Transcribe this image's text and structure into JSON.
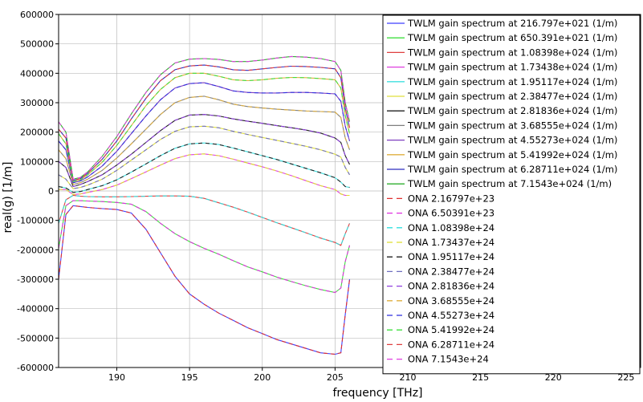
{
  "chart_data": {
    "type": "line",
    "xlabel": "frequency [THz]",
    "ylabel": "real(g) [1/m]",
    "xlim": [
      186,
      226
    ],
    "ylim": [
      -600000,
      600000
    ],
    "x_ticks": [
      "190",
      "195",
      "200",
      "205",
      "210",
      "215",
      "220",
      "225"
    ],
    "y_ticks": [
      "600000",
      "500000",
      "400000",
      "300000",
      "200000",
      "100000",
      "0",
      "-100000",
      "-200000",
      "-300000",
      "-400000",
      "-500000",
      "-600000"
    ],
    "x_tick_values": [
      190,
      195,
      200,
      205,
      210,
      215,
      220,
      225
    ],
    "y_tick_values": [
      600000,
      500000,
      400000,
      300000,
      200000,
      100000,
      0,
      -100000,
      -200000,
      -300000,
      -400000,
      -500000,
      -600000
    ],
    "x": [
      186,
      186.5,
      187,
      187.5,
      188,
      189,
      190,
      191,
      192,
      193,
      194,
      195,
      196,
      197,
      198,
      199,
      200,
      201,
      202,
      203,
      204,
      205,
      205.4,
      205.7,
      206
    ],
    "legend_position": "top-right",
    "series": [
      {
        "name": "TWLM gain spectrum  at 216.797e+021 (1/m)",
        "color": "#3f3fff",
        "dash": false,
        "values": [
          -300000,
          -80000,
          -50000,
          -53000,
          -56000,
          -60000,
          -63000,
          -75000,
          -130000,
          -210000,
          -290000,
          -350000,
          -385000,
          -415000,
          -440000,
          -465000,
          -485000,
          -505000,
          -520000,
          -535000,
          -550000,
          -555000,
          -550000,
          -420000,
          -300000
        ]
      },
      {
        "name": "TWLM gain spectrum  at 650.391e+021 (1/m)",
        "color": "#3fdf3f",
        "dash": false,
        "values": [
          -195000,
          -50000,
          -33000,
          -33000,
          -34000,
          -36000,
          -39000,
          -45000,
          -70000,
          -110000,
          -145000,
          -172000,
          -195000,
          -215000,
          -237000,
          -258000,
          -275000,
          -293000,
          -308000,
          -322000,
          -335000,
          -345000,
          -330000,
          -240000,
          -185000
        ]
      },
      {
        "name": "TWLM gain spectrum  at 1.08398e+024 (1/m)",
        "color": "#df3f3f",
        "dash": false,
        "values": [
          -110000,
          -30000,
          -15000,
          -18000,
          -19000,
          -20000,
          -20000,
          -19000,
          -18000,
          -17000,
          -17000,
          -18000,
          -25000,
          -40000,
          -55000,
          -72000,
          -90000,
          -108000,
          -125000,
          -142000,
          -160000,
          -175000,
          -185000,
          -145000,
          -110000
        ]
      },
      {
        "name": "TWLM gain spectrum  at 1.73438e+024 (1/m)",
        "color": "#df3fdf",
        "dash": false,
        "values": [
          5000,
          5000,
          -12000,
          -10000,
          -5000,
          5000,
          20000,
          42000,
          65000,
          88000,
          110000,
          123000,
          126000,
          120000,
          108000,
          95000,
          82000,
          68000,
          52000,
          35000,
          18000,
          5000,
          -10000,
          -15000,
          -15000
        ]
      },
      {
        "name": "TWLM gain spectrum  at 1.95117e+024 (1/m)",
        "color": "#3fdfdf",
        "dash": false,
        "values": [
          15000,
          10000,
          -5000,
          -2000,
          5000,
          18000,
          38000,
          64000,
          92000,
          120000,
          145000,
          160000,
          163000,
          158000,
          146000,
          133000,
          120000,
          107000,
          92000,
          77000,
          62000,
          45000,
          30000,
          15000,
          12000
        ]
      },
      {
        "name": "TWLM gain spectrum  at 2.38477e+024 (1/m)",
        "color": "#dfdf3f",
        "dash": false,
        "values": [
          55000,
          40000,
          8000,
          12000,
          20000,
          40000,
          70000,
          105000,
          140000,
          175000,
          203000,
          218000,
          220000,
          215000,
          203000,
          192000,
          182000,
          172000,
          162000,
          152000,
          140000,
          125000,
          115000,
          80000,
          55000
        ]
      },
      {
        "name": "TWLM gain spectrum  at 2.81836e+024 (1/m)",
        "color": "#202020",
        "dash": false,
        "values": [
          100000,
          80000,
          15000,
          22000,
          32000,
          55000,
          88000,
          125000,
          165000,
          205000,
          240000,
          258000,
          260000,
          255000,
          245000,
          237000,
          230000,
          222000,
          215000,
          207000,
          197000,
          180000,
          165000,
          120000,
          90000
        ]
      },
      {
        "name": "TWLM gain spectrum  at 3.68555e+024 (1/m)",
        "color": "#7f7f7f",
        "dash": false,
        "values": [
          140000,
          110000,
          22000,
          28000,
          40000,
          70000,
          112000,
          160000,
          210000,
          260000,
          300000,
          318000,
          322000,
          310000,
          295000,
          287000,
          282000,
          278000,
          275000,
          272000,
          270000,
          268000,
          250000,
          180000,
          140000
        ]
      },
      {
        "name": "TWLM gain spectrum  at 4.55273e+024 (1/m)",
        "color": "#7f3fbf",
        "dash": false,
        "values": [
          170000,
          140000,
          28000,
          34000,
          48000,
          85000,
          135000,
          195000,
          255000,
          310000,
          350000,
          365000,
          368000,
          355000,
          340000,
          335000,
          333000,
          333000,
          335000,
          335000,
          333000,
          330000,
          305000,
          220000,
          170000
        ]
      },
      {
        "name": "TWLM gain spectrum  at 5.41992e+024 (1/m)",
        "color": "#dfaf3f",
        "dash": false,
        "values": [
          195000,
          160000,
          32000,
          38000,
          55000,
          98000,
          155000,
          222000,
          290000,
          345000,
          385000,
          400000,
          400000,
          390000,
          378000,
          375000,
          378000,
          383000,
          386000,
          385000,
          382000,
          378000,
          350000,
          255000,
          195000
        ]
      },
      {
        "name": "TWLM gain spectrum  at 6.28711e+024 (1/m)",
        "color": "#2f2fbf",
        "dash": false,
        "values": [
          210000,
          180000,
          36000,
          42000,
          60000,
          108000,
          170000,
          245000,
          315000,
          375000,
          412000,
          425000,
          428000,
          422000,
          412000,
          410000,
          415000,
          420000,
          424000,
          423000,
          420000,
          415000,
          385000,
          280000,
          215000
        ]
      },
      {
        "name": "TWLM gain spectrum  at 7.1543e+024 (1/m)",
        "color": "#2faf2f",
        "dash": false,
        "values": [
          235000,
          200000,
          40000,
          46000,
          65000,
          118000,
          185000,
          262000,
          335000,
          395000,
          435000,
          448000,
          450000,
          447000,
          440000,
          440000,
          445000,
          452000,
          457000,
          455000,
          450000,
          440000,
          410000,
          300000,
          235000
        ]
      },
      {
        "name": "ONA 2.16797e+23",
        "color": "#df2f2f",
        "dash": true,
        "values_from_series": 0
      },
      {
        "name": "ONA 6.50391e+23",
        "color": "#df2fdf",
        "dash": true,
        "values_from_series": 1
      },
      {
        "name": "ONA 1.08398e+24",
        "color": "#2fdfdf",
        "dash": true,
        "values_from_series": 2
      },
      {
        "name": "ONA 1.73437e+24",
        "color": "#dfdf2f",
        "dash": true,
        "values_from_series": 3
      },
      {
        "name": "ONA 1.95117e+24",
        "color": "#202020",
        "dash": true,
        "values_from_series": 4
      },
      {
        "name": "ONA 2.38477e+24",
        "color": "#6f6fbf",
        "dash": true,
        "values_from_series": 5
      },
      {
        "name": "ONA 2.81836e+24",
        "color": "#8f3fdf",
        "dash": true,
        "values_from_series": 6
      },
      {
        "name": "ONA 3.68555e+24",
        "color": "#dfaf3f",
        "dash": true,
        "values_from_series": 7
      },
      {
        "name": "ONA 4.55273e+24",
        "color": "#2f2fdf",
        "dash": true,
        "values_from_series": 8
      },
      {
        "name": "ONA 5.41992e+24",
        "color": "#3fdf3f",
        "dash": true,
        "values_from_series": 9
      },
      {
        "name": "ONA 6.28711e+24",
        "color": "#df3f3f",
        "dash": true,
        "values_from_series": 10
      },
      {
        "name": "ONA 7.1543e+24",
        "color": "#df3fdf",
        "dash": true,
        "values_from_series": 11
      }
    ]
  }
}
